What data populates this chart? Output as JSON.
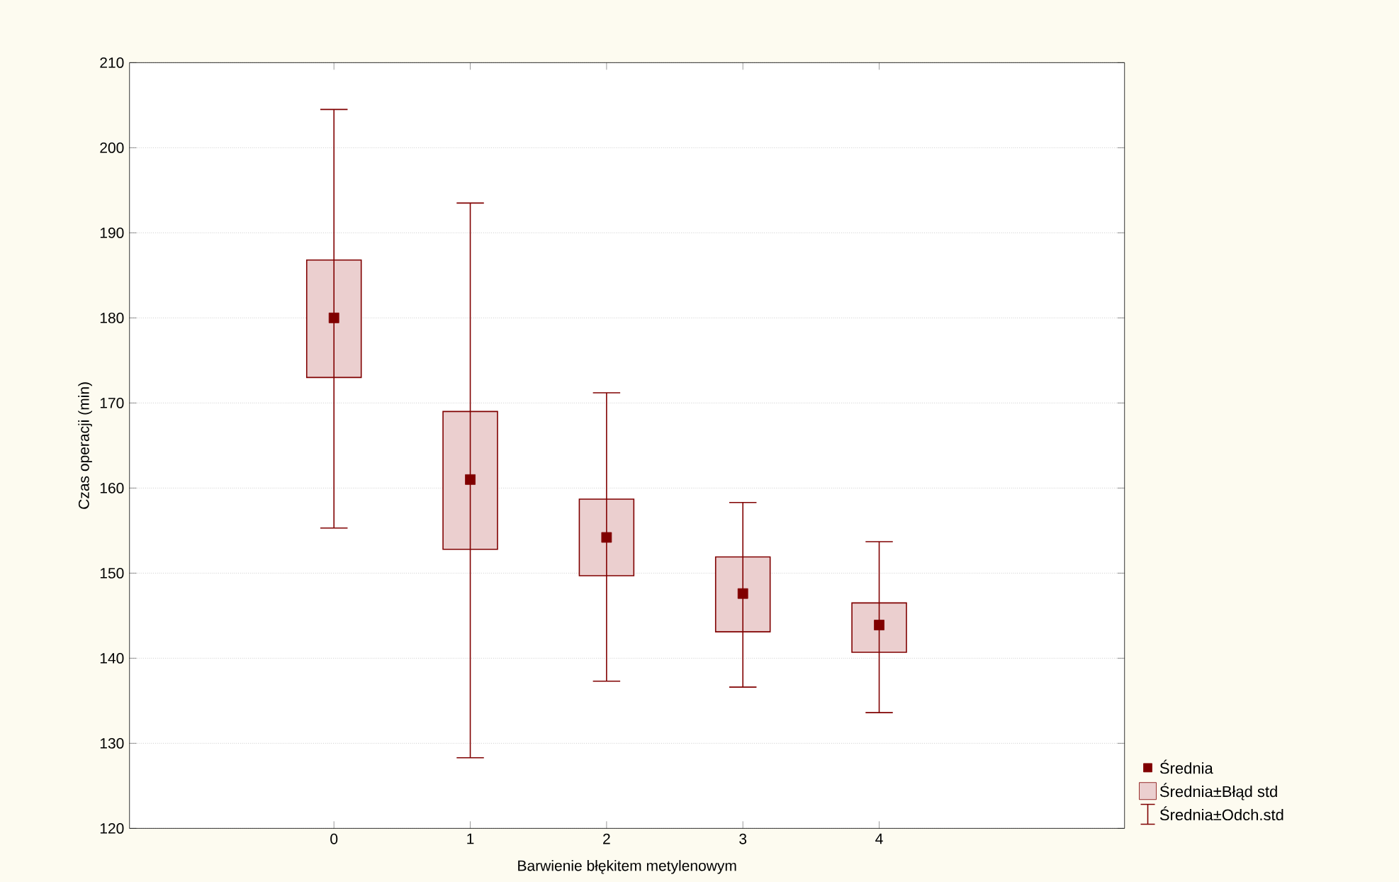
{
  "chart_data": {
    "type": "bar",
    "xlabel": "Barwienie błękitem metylenowym",
    "ylabel": "Czas operacji (min)",
    "categories": [
      "0",
      "1",
      "2",
      "3",
      "4"
    ],
    "series": [
      {
        "name": "Średnia",
        "type": "scatter",
        "marker": "square",
        "color": "#800000",
        "values": [
          180,
          161,
          154.2,
          147.6,
          143.9
        ],
        "errors": [
          [
            155.3,
            204.5
          ],
          [
            128.3,
            193.5
          ],
          [
            137.3,
            171.2
          ],
          [
            136.6,
            158.3
          ],
          [
            133.6,
            153.7
          ]
        ]
      },
      {
        "name": "Średnia±Błąd std",
        "color": "#800000",
        "base": [
          173,
          152.8,
          149.7,
          143.1,
          140.7
        ],
        "values": [
          13.8,
          16.2,
          9.0,
          8.8,
          5.8
        ]
      }
    ],
    "annotations": [
      "Średnia±Odch.std"
    ],
    "ylim": [
      120,
      210
    ],
    "yticks": [
      120,
      130,
      140,
      150,
      160,
      170,
      180,
      190,
      200,
      210
    ],
    "grid": "y",
    "legend": "bottom right"
  }
}
